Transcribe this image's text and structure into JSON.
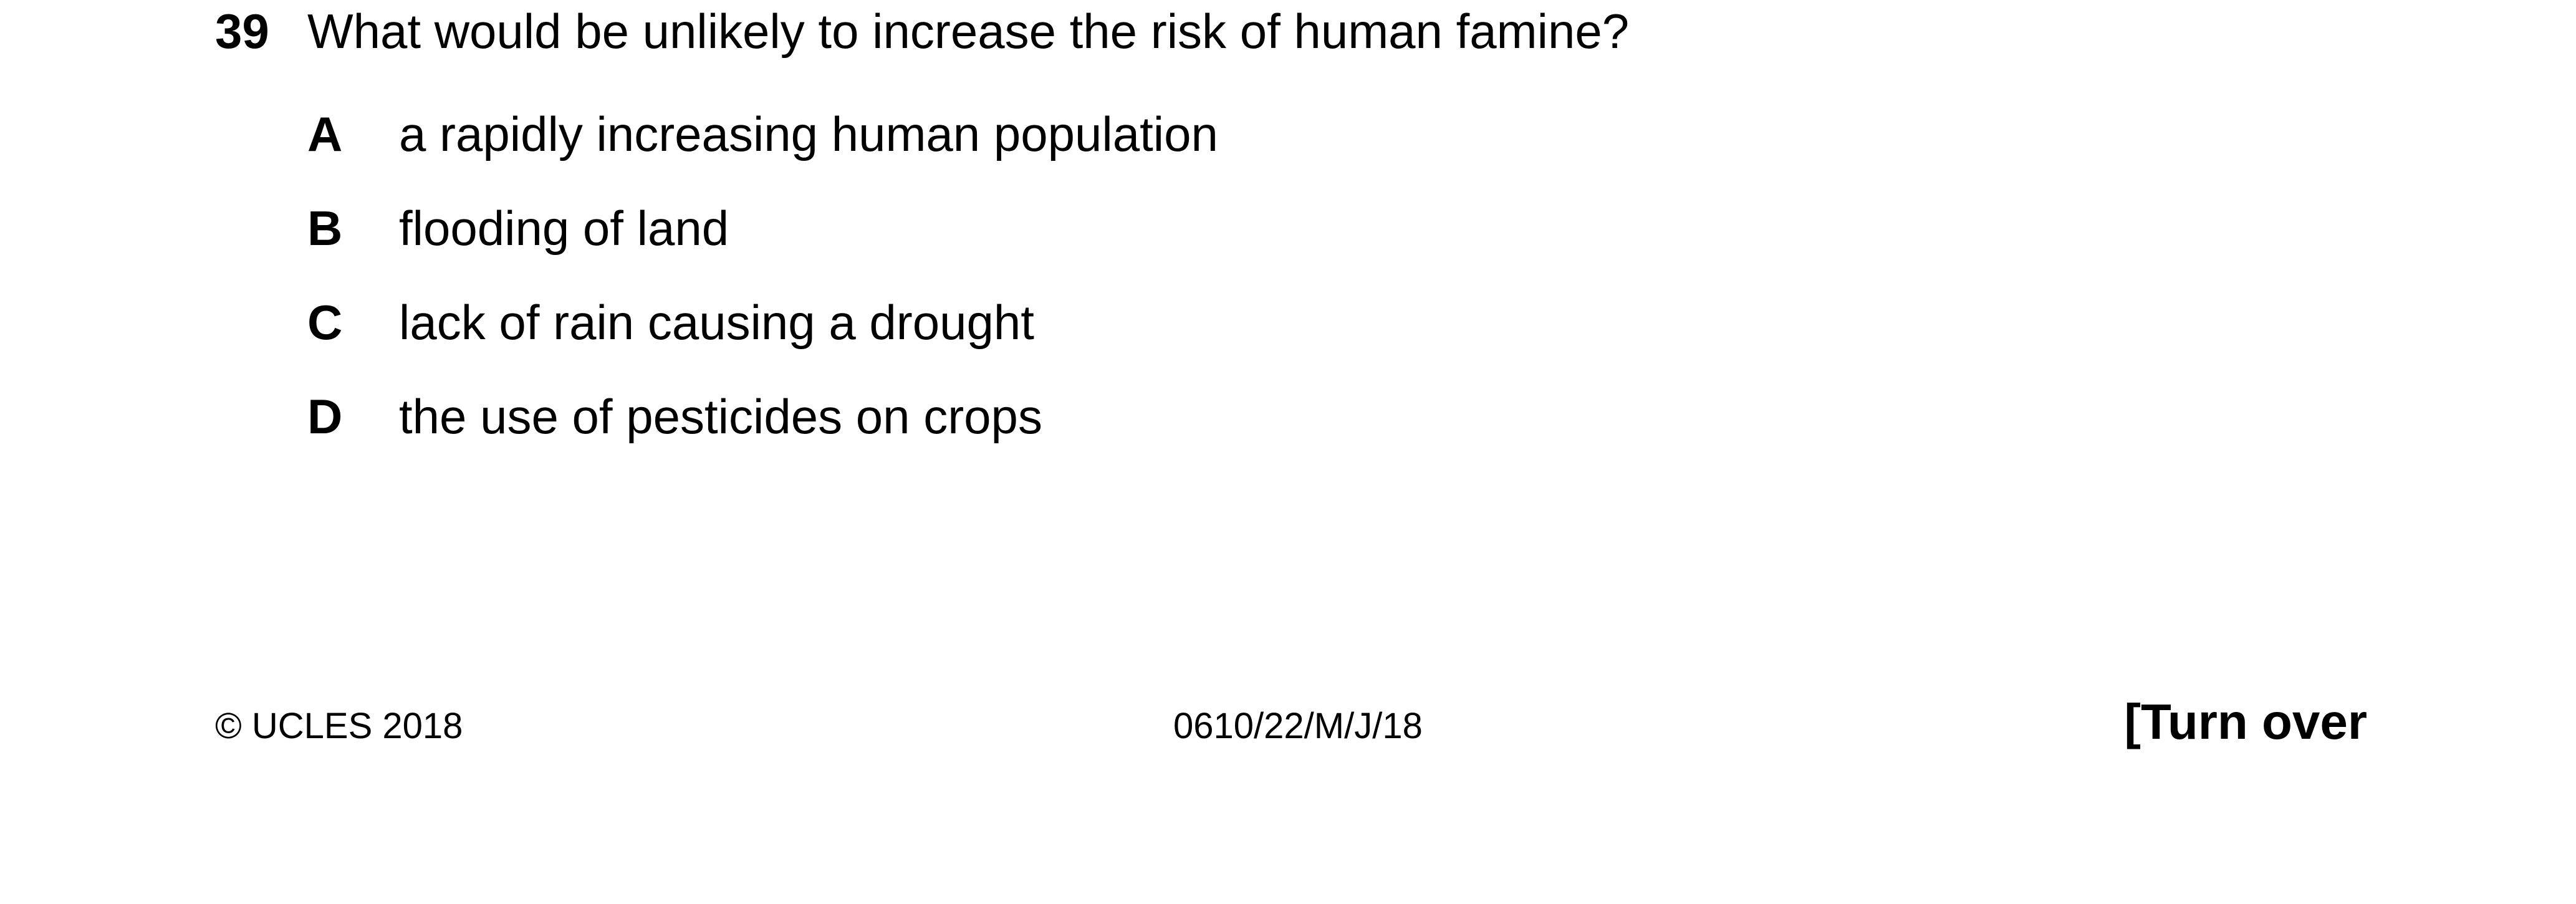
{
  "question": {
    "number": "39",
    "text": "What would be unlikely to increase the risk of human famine?"
  },
  "options": [
    {
      "letter": "A",
      "text": "a rapidly increasing human population"
    },
    {
      "letter": "B",
      "text": "flooding of land"
    },
    {
      "letter": "C",
      "text": "lack of rain causing a drought"
    },
    {
      "letter": "D",
      "text": "the use of pesticides on crops"
    }
  ],
  "footer": {
    "copyright": "© UCLES 2018",
    "code": "0610/22/M/J/18",
    "turn_over": "[Turn over"
  }
}
